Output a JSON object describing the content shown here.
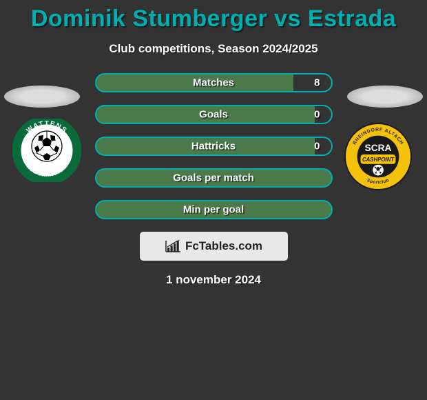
{
  "title": "Dominik Stumberger vs Estrada",
  "subtitle": "Club competitions, Season 2024/2025",
  "stats": [
    {
      "label": "Matches",
      "value": "8",
      "fill_pct": 16
    },
    {
      "label": "Goals",
      "value": "0",
      "fill_pct": 7
    },
    {
      "label": "Hattricks",
      "value": "0",
      "fill_pct": 7
    },
    {
      "label": "Goals per match",
      "value": "",
      "fill_pct": 0
    },
    {
      "label": "Min per goal",
      "value": "",
      "fill_pct": 0
    }
  ],
  "brand": "FcTables.com",
  "date": "1 november 2024",
  "colors": {
    "accent": "#00b0b0",
    "bar_fill_green": "#4a7a4a",
    "bar_fill_dark": "#333333",
    "background": "#333333",
    "text": "#ffffff",
    "box_bg": "#e8e8e8"
  },
  "left_club": {
    "name": "WSG Swarovski Wattens",
    "ring_color": "#0a6b3a",
    "text_color": "#ffffff"
  },
  "right_club": {
    "name": "SCRA Cashpoint Altach",
    "primary": "#f4c20d",
    "secondary": "#1a1a1a",
    "text": "SCRA"
  }
}
